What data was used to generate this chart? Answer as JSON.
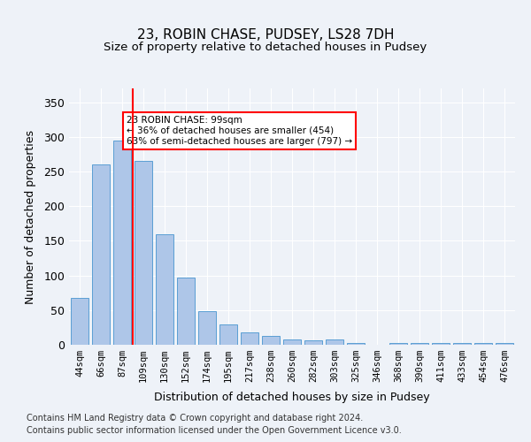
{
  "title1": "23, ROBIN CHASE, PUDSEY, LS28 7DH",
  "title2": "Size of property relative to detached houses in Pudsey",
  "xlabel": "Distribution of detached houses by size in Pudsey",
  "ylabel": "Number of detached properties",
  "bin_labels": [
    "44sqm",
    "66sqm",
    "87sqm",
    "109sqm",
    "130sqm",
    "152sqm",
    "174sqm",
    "195sqm",
    "217sqm",
    "238sqm",
    "260sqm",
    "282sqm",
    "303sqm",
    "325sqm",
    "346sqm",
    "368sqm",
    "390sqm",
    "411sqm",
    "433sqm",
    "454sqm",
    "476sqm"
  ],
  "bar_heights": [
    68,
    260,
    295,
    265,
    160,
    97,
    48,
    29,
    18,
    13,
    8,
    6,
    8,
    2,
    0,
    3,
    3,
    3,
    3,
    3,
    3
  ],
  "bar_color": "#aec6e8",
  "bar_edge_color": "#5a9fd4",
  "red_line_x": 2.5,
  "annotation_text": "23 ROBIN CHASE: 99sqm\n← 36% of detached houses are smaller (454)\n63% of semi-detached houses are larger (797) →",
  "annotation_box_color": "white",
  "annotation_box_edge": "red",
  "ylim": [
    0,
    370
  ],
  "yticks": [
    0,
    50,
    100,
    150,
    200,
    250,
    300,
    350
  ],
  "footer1": "Contains HM Land Registry data © Crown copyright and database right 2024.",
  "footer2": "Contains public sector information licensed under the Open Government Licence v3.0.",
  "background_color": "#eef2f8",
  "plot_bg_color": "#eef2f8"
}
